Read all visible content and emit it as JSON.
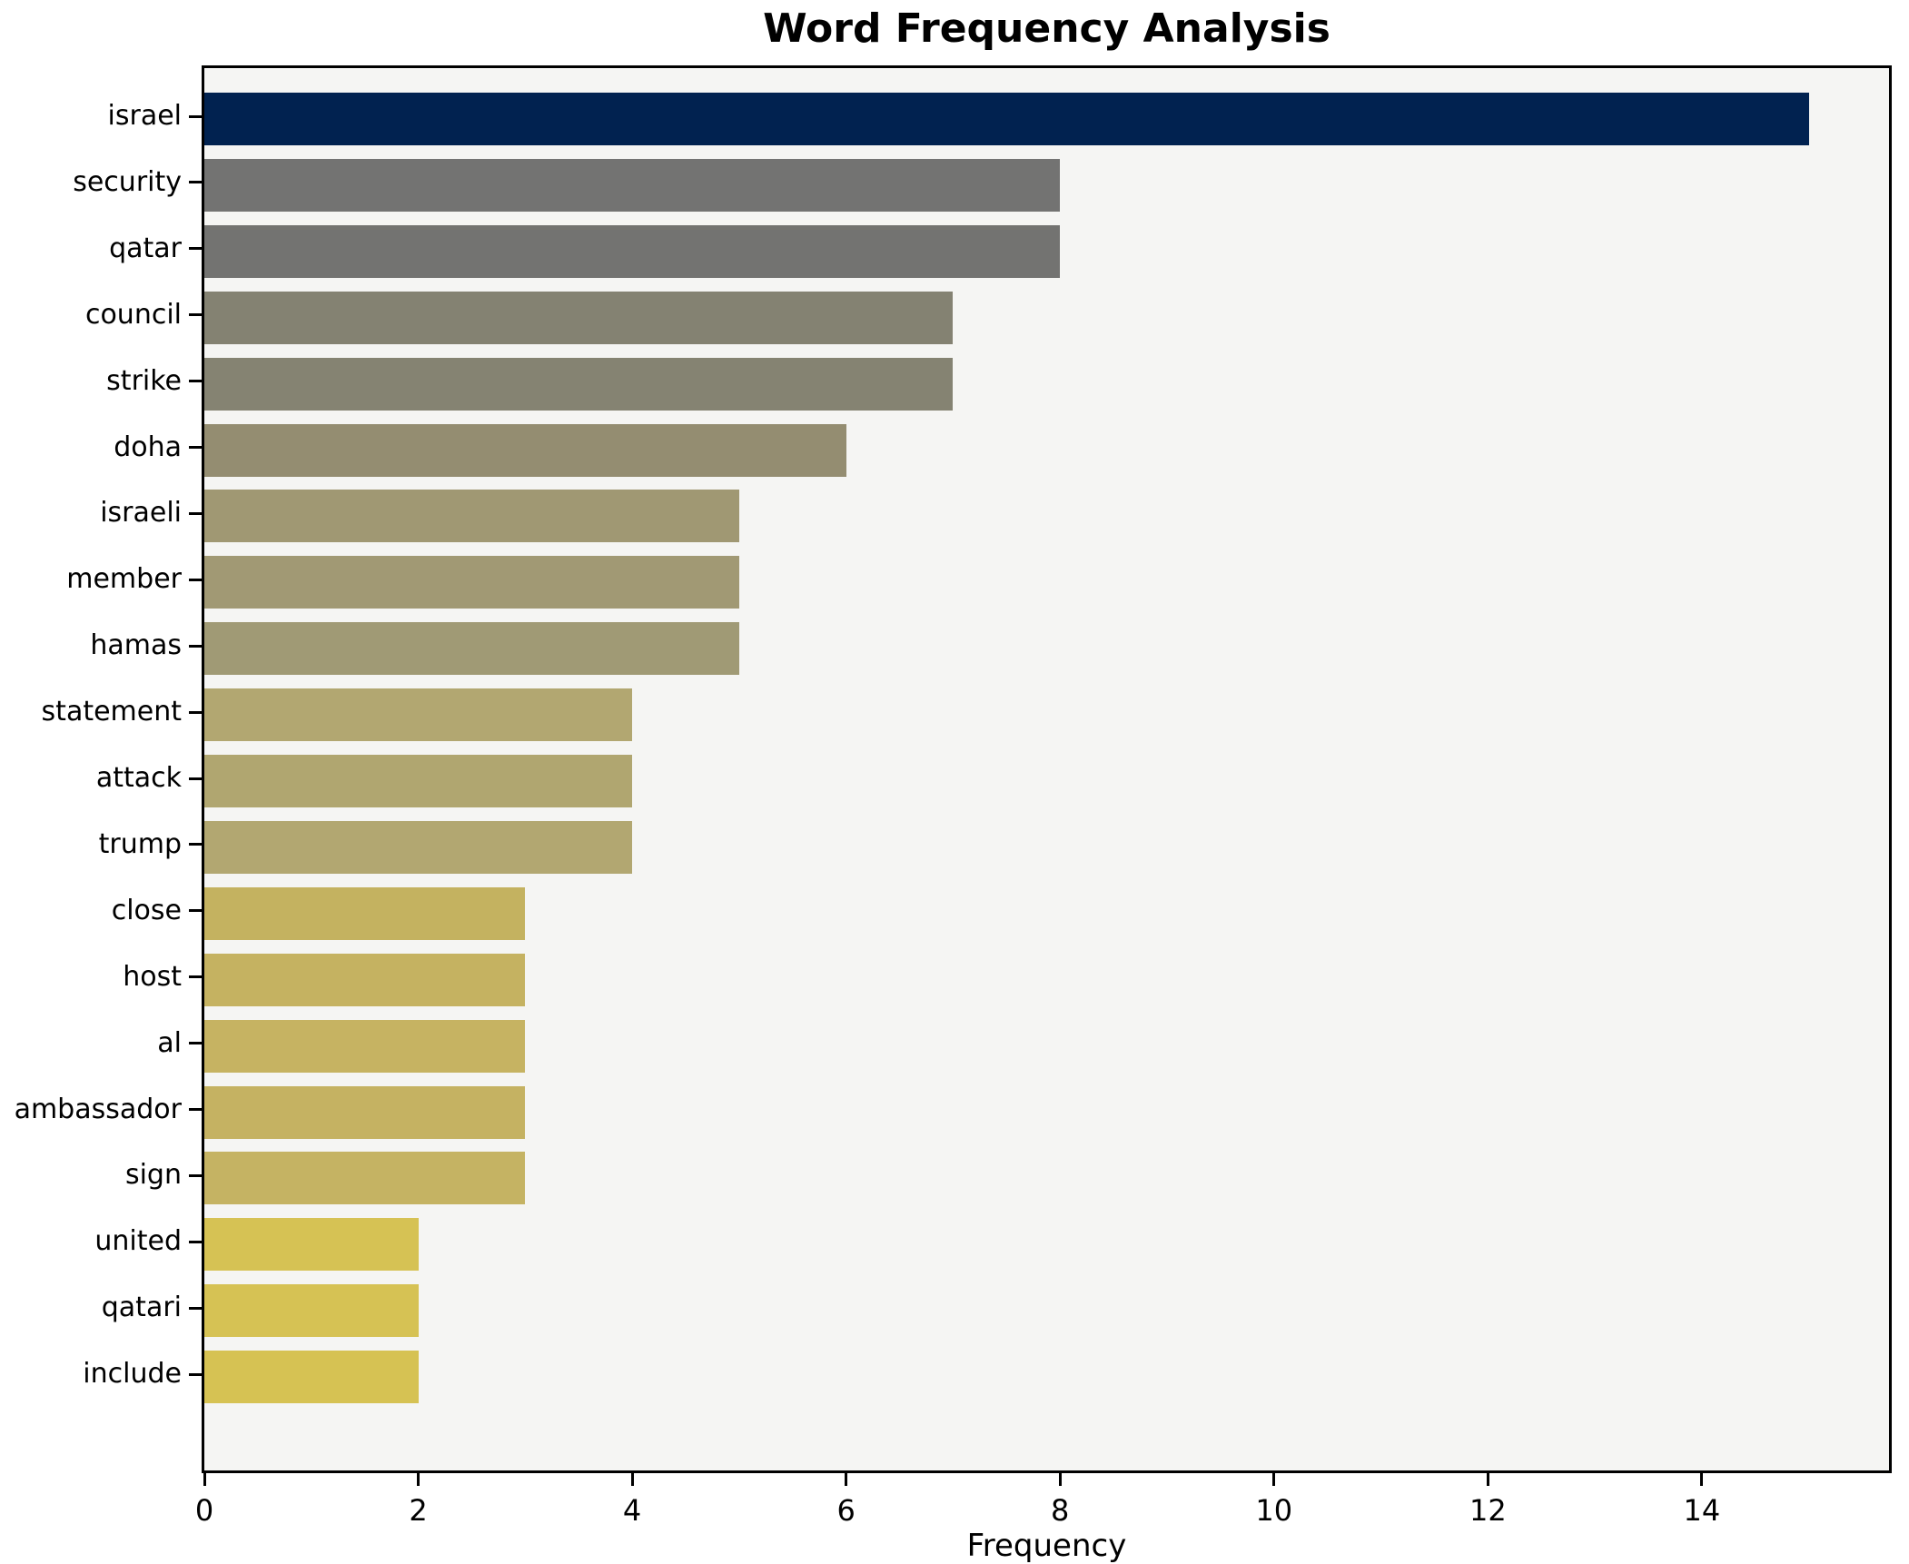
{
  "chart_data": {
    "type": "bar",
    "orientation": "horizontal",
    "title": "Word Frequency Analysis",
    "xlabel": "Frequency",
    "ylabel": "",
    "categories": [
      "israel",
      "security",
      "qatar",
      "council",
      "strike",
      "doha",
      "israeli",
      "member",
      "hamas",
      "statement",
      "attack",
      "trump",
      "close",
      "host",
      "al",
      "ambassador",
      "sign",
      "united",
      "qatari",
      "include"
    ],
    "values": [
      15,
      8,
      8,
      7,
      7,
      6,
      5,
      5,
      5,
      4,
      4,
      4,
      3,
      3,
      3,
      3,
      3,
      2,
      2,
      2
    ],
    "bar_colors": [
      "#012250",
      "#737372",
      "#737371",
      "#848272",
      "#858372",
      "#948d71",
      "#a09873",
      "#a19974",
      "#a09a75",
      "#b2a771",
      "#b0a670",
      "#b2a771",
      "#c4b260",
      "#c5b261",
      "#c6b362",
      "#c5b262",
      "#c5b363",
      "#d6c254",
      "#d6c254",
      "#d6c253"
    ],
    "xlim": [
      0,
      15.75
    ],
    "x_ticks": [
      0,
      2,
      4,
      6,
      8,
      10,
      12,
      14
    ],
    "grid": false,
    "legend_position": "none",
    "plot_background": "#f5f5f3",
    "axis_color": "#000000"
  }
}
